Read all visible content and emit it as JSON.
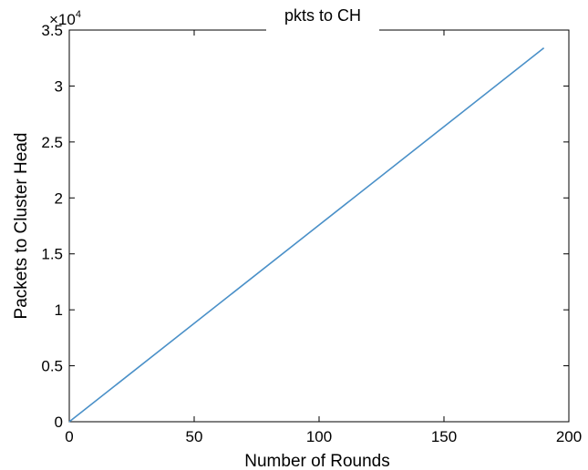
{
  "chart_data": {
    "type": "line",
    "title": "pkts to CH",
    "xlabel": "Number of Rounds",
    "ylabel": "Packets to Cluster Head",
    "y_multiplier_label": "×10",
    "y_multiplier_exponent": "4",
    "xlim": [
      0,
      200
    ],
    "ylim": [
      0,
      35000
    ],
    "x_ticks": [
      0,
      50,
      100,
      150,
      200
    ],
    "x_tick_labels": [
      "0",
      "50",
      "100",
      "150",
      "200"
    ],
    "y_ticks": [
      0,
      5000,
      10000,
      15000,
      20000,
      25000,
      30000,
      35000
    ],
    "y_tick_labels": [
      "0",
      "0.5",
      "1",
      "1.5",
      "2",
      "2.5",
      "3",
      "3.5"
    ],
    "grid": false,
    "legend": "none",
    "series": [
      {
        "color": "#4a90c8",
        "x": [
          0,
          190
        ],
        "y": [
          0,
          33400
        ]
      }
    ]
  }
}
